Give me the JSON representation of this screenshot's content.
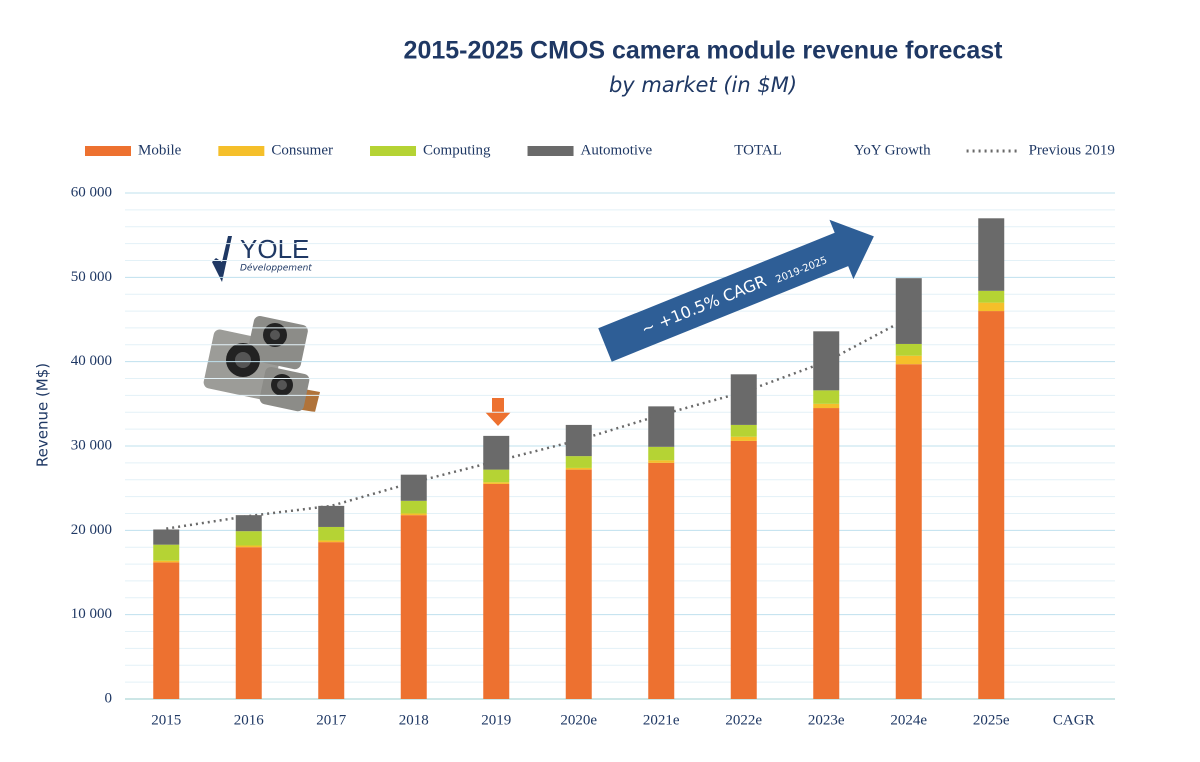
{
  "chart_data": {
    "type": "stacked_bar",
    "title": "2015-2025 CMOS camera module revenue forecast",
    "subtitle": "by market (in $M)",
    "y_label": "Revenue (M$)",
    "categories": [
      "2015",
      "2016",
      "2017",
      "2018",
      "2019",
      "2020e",
      "2021e",
      "2022e",
      "2023e",
      "2024e",
      "2025e",
      "CAGR"
    ],
    "series": [
      {
        "name": "Mobile",
        "color": "#ed7130",
        "values": [
          16200,
          18000,
          18600,
          21800,
          25500,
          27200,
          28000,
          30600,
          34500,
          39700,
          46000,
          null
        ]
      },
      {
        "name": "Consumer",
        "color": "#f5bf2a",
        "values": [
          200,
          200,
          200,
          200,
          200,
          200,
          300,
          500,
          500,
          1000,
          1000,
          null
        ]
      },
      {
        "name": "Computing",
        "color": "#b5d334",
        "values": [
          1900,
          1700,
          1600,
          1500,
          1500,
          1400,
          1600,
          1400,
          1600,
          1400,
          1400,
          null
        ]
      },
      {
        "name": "Automotive",
        "color": "#6a6a6a",
        "values": [
          1800,
          1900,
          2500,
          3100,
          4000,
          3700,
          4800,
          6000,
          7000,
          7800,
          8600,
          null
        ]
      }
    ],
    "legend_extra": [
      "TOTAL",
      "YoY Growth"
    ],
    "line_series": {
      "name": "Previous 2019",
      "color": "#6a6a6a",
      "values": [
        20200,
        21700,
        22900,
        25700,
        28200,
        30700,
        33700,
        36400,
        40000,
        45200,
        null,
        null
      ]
    },
    "ylim": [
      0,
      60000
    ],
    "yticks": [
      0,
      {
        "value": 10000,
        "label": "10 000"
      },
      {
        "value": 20000,
        "label": "20 000"
      },
      {
        "value": 30000,
        "label": "30 000"
      },
      {
        "value": 40000,
        "label": "40 000"
      },
      {
        "value": 50000,
        "label": "50 000"
      },
      {
        "value": 60000,
        "label": "60 000"
      }
    ],
    "grid": true,
    "annotation": {
      "text": "~ +10.5% CAGR",
      "subscript": "2019-2025"
    },
    "logo": {
      "name": "YOLE",
      "tagline": "Développement"
    }
  }
}
